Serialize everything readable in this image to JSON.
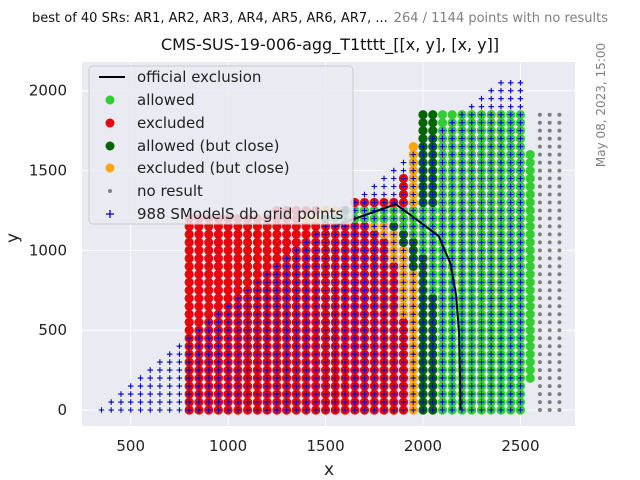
{
  "header": {
    "left": "best of 40 SRs: AR1, AR2, AR3, AR4, AR5, AR6, AR7, ...",
    "right": "264 / 1144 points with no results",
    "timestamp": "May 08, 2023, 15:00"
  },
  "chart_data": {
    "type": "scatter",
    "title": "CMS-SUS-19-006-agg_T1tttt_[[x, y], [x, y]]",
    "xlabel": "x",
    "ylabel": "y",
    "xlim": [
      250,
      2780
    ],
    "ylim": [
      -100,
      2180
    ],
    "xticks": [
      500,
      1000,
      1500,
      2000,
      2500
    ],
    "yticks": [
      0,
      500,
      1000,
      1500,
      2000
    ],
    "grid": true,
    "legend_position": "top-left",
    "colors": {
      "background": "#eaeaf2",
      "grid": "#ffffff",
      "allowed": "#32cd32",
      "excluded": "#e8000b",
      "allowed_close": "#006400",
      "excluded_close": "#ffa500",
      "no_result": "#808080",
      "grid_points": "#0000cc",
      "exclusion_line": "#000033"
    },
    "legend": [
      {
        "key": "official_exclusion",
        "label": "official exclusion"
      },
      {
        "key": "allowed",
        "label": "allowed"
      },
      {
        "key": "excluded",
        "label": "excluded"
      },
      {
        "key": "allowed_close",
        "label": "allowed (but close)"
      },
      {
        "key": "excluded_close",
        "label": "excluded (but close)"
      },
      {
        "key": "no_result",
        "label": "no result"
      },
      {
        "key": "grid_points",
        "label": "988 SModelS db grid points"
      }
    ],
    "official_exclusion": {
      "x": [
        1560,
        1700,
        1860,
        1960,
        2080,
        2140,
        2170,
        2185,
        2190,
        2192
      ],
      "y": [
        1160,
        1220,
        1290,
        1200,
        1090,
        920,
        720,
        480,
        200,
        0
      ]
    },
    "regions": {
      "excluded": {
        "x": [
          800,
          1900
        ],
        "y": [
          0,
          1200
        ]
      },
      "excluded_close": {
        "x": [
          1750,
          1950
        ],
        "y": [
          0,
          1300
        ]
      },
      "allowed_close": {
        "x": [
          1840,
          2000
        ],
        "y": [
          0,
          1100
        ]
      },
      "allowed": {
        "x": [
          1700,
          2550
        ],
        "y": [
          0,
          1850
        ]
      },
      "no_result": {
        "x": [
          950,
          2700
        ],
        "y": [
          0,
          1850
        ]
      },
      "grid_points": {
        "x": [
          350,
          2500
        ],
        "y": [
          0,
          2050
        ]
      }
    }
  }
}
